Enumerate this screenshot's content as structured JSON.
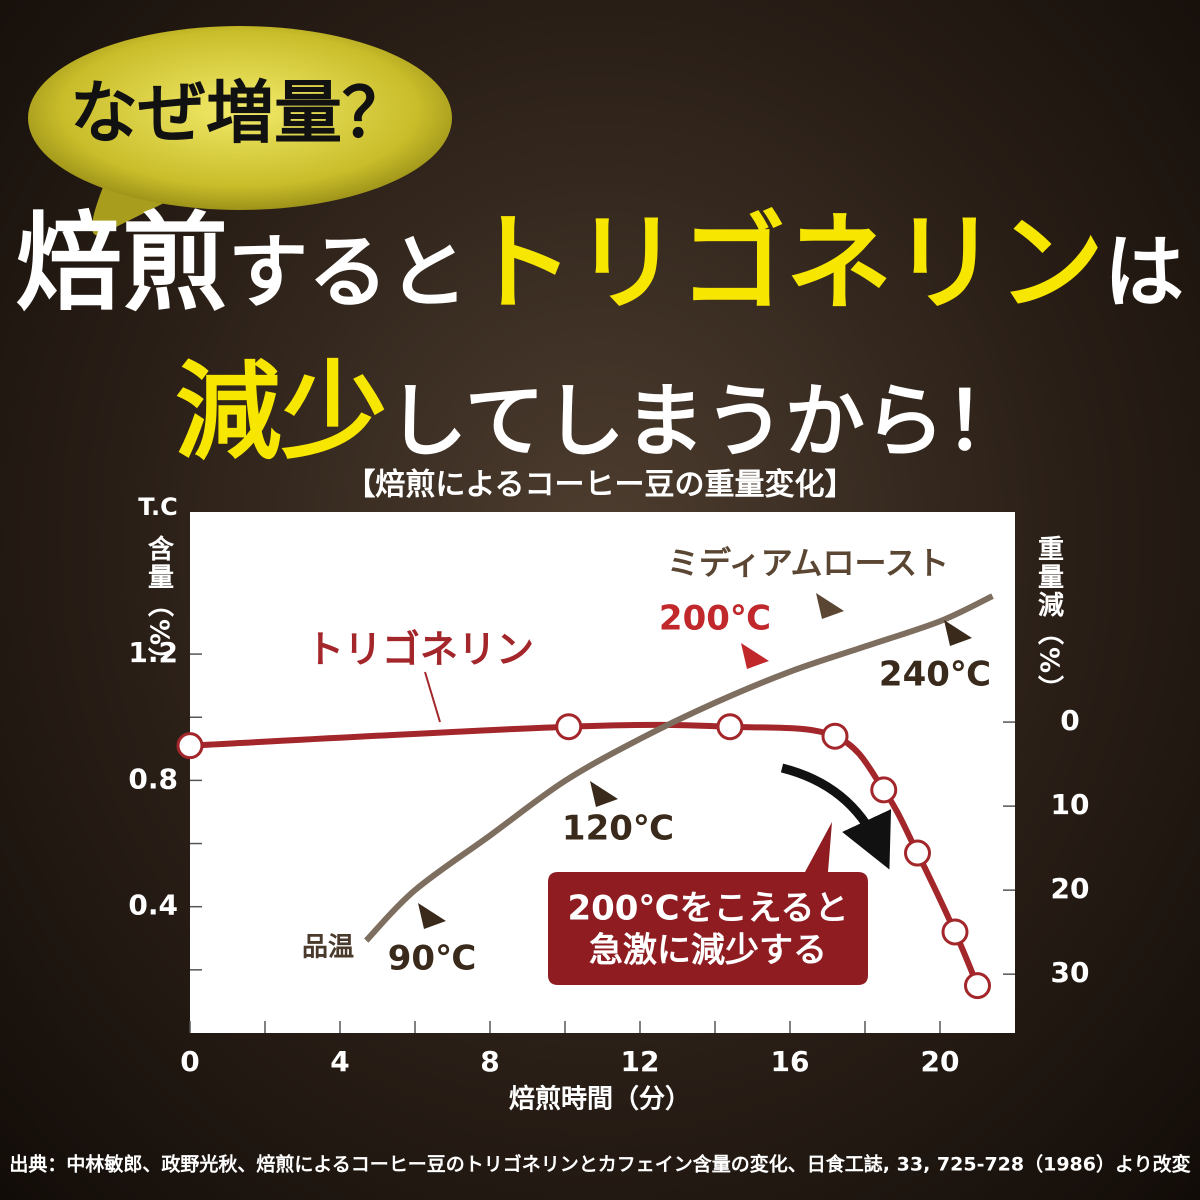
{
  "bubble": "なぜ増量？",
  "headline": [
    [
      "焙煎",
      "すると",
      "トリゴネリン",
      "は"
    ],
    [
      "減少",
      "してしまうから！"
    ]
  ],
  "source": "出典：中林敏郎、政野光秋、焙煎によるコーヒー豆のトリゴネリンとカフェイン含量の変化、日食工誌, 33, 725-728（1986）より改変",
  "chart_data": {
    "type": "line",
    "title": "【焙煎によるコーヒー豆の重量変化】",
    "x_label": "焙煎時間（分）",
    "y_label_top": "T.C",
    "y_label": "含量（%）",
    "y2_label": "重量減（%）",
    "xlim": [
      0,
      22
    ],
    "xticks": [
      0,
      4,
      8,
      12,
      16,
      20
    ],
    "xminorticks": [
      2,
      6,
      10,
      14,
      18
    ],
    "ylim": [
      0,
      1.65
    ],
    "yticks": [
      0.4,
      0.8,
      1.2
    ],
    "yminorticks": [
      0.2,
      0.6,
      1.0
    ],
    "y2lim": [
      -25,
      37
    ],
    "y2_reversed": true,
    "y2ticks": [
      0,
      10,
      20,
      30
    ],
    "series": [
      {
        "name": "トリゴネリン",
        "color": "#a3262a",
        "markers": true,
        "x": [
          0,
          10.1,
          14.4,
          17.2,
          18.5,
          19.4,
          20.4,
          21.0
        ],
        "values": [
          0.91,
          0.97,
          0.97,
          0.94,
          0.77,
          0.57,
          0.32,
          0.15
        ]
      },
      {
        "name": "品温",
        "color": "#7d6e5f",
        "axis": "y2",
        "markers": false,
        "x": [
          4.7,
          6,
          8,
          10,
          12,
          14,
          16,
          18,
          20,
          21.4
        ],
        "values": [
          26,
          20,
          13.5,
          7,
          2,
          -2.3,
          -6,
          -9,
          -12,
          -15
        ]
      }
    ],
    "annotations": [
      "ミディアムロースト",
      "200℃",
      "240℃",
      "120℃",
      "90℃"
    ],
    "callout": [
      "200℃をこえると",
      "急激に減少する"
    ]
  }
}
